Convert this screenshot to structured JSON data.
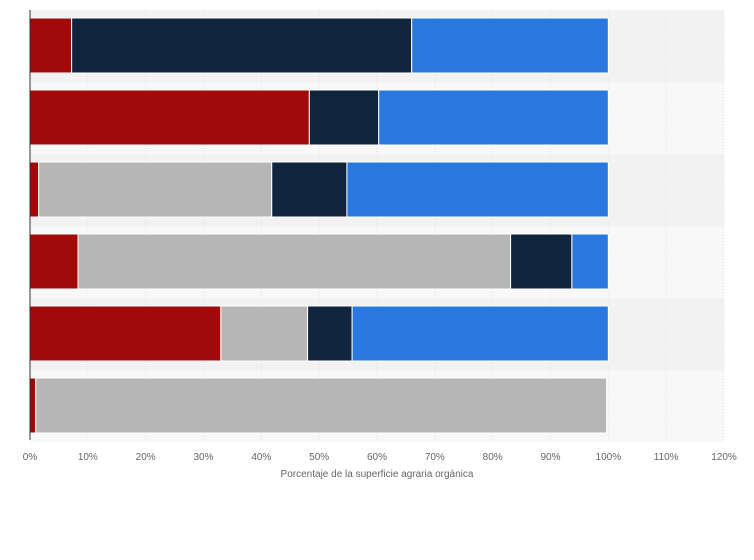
{
  "chart_data": {
    "type": "bar",
    "orientation": "horizontal",
    "stacked": true,
    "title": "",
    "xlabel": "Porcentaje de la superficie agraria orgánica",
    "ylabel": "",
    "xlim": [
      0,
      120
    ],
    "x_ticks": [
      "0%",
      "10%",
      "20%",
      "30%",
      "40%",
      "50%",
      "60%",
      "70%",
      "80%",
      "90%",
      "100%",
      "110%",
      "120%"
    ],
    "grid": true,
    "legend": false,
    "rows": 6,
    "series": [
      {
        "color": "#a10a0a",
        "values": [
          7.2,
          48.3,
          1.5,
          8.3,
          33.0,
          1.0
        ]
      },
      {
        "color": "#b6b6b6",
        "values": [
          0,
          0,
          40.3,
          74.8,
          15.0,
          98.7
        ]
      },
      {
        "color": "#10253d",
        "values": [
          58.8,
          12.0,
          13.0,
          10.6,
          7.7,
          0
        ]
      },
      {
        "color": "#2a78de",
        "values": [
          34.0,
          39.7,
          45.2,
          6.3,
          44.3,
          0
        ]
      }
    ]
  }
}
